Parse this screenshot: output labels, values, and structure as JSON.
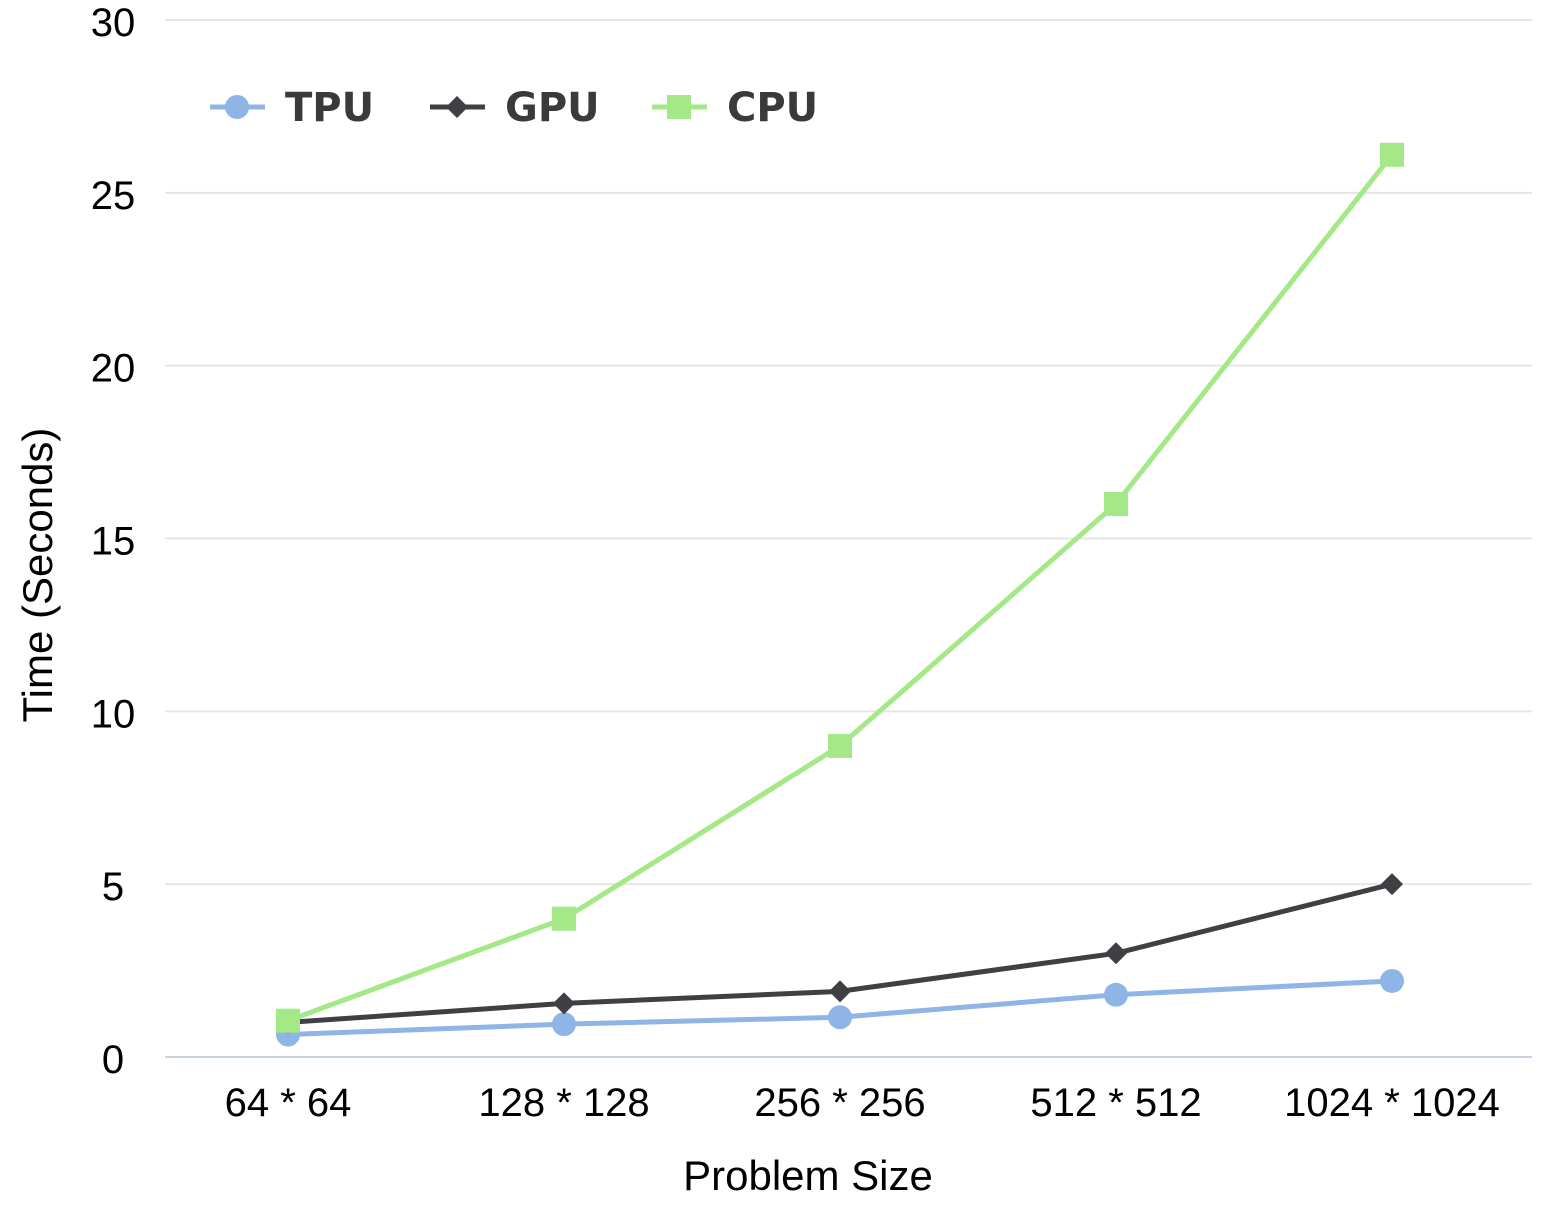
{
  "chart_data": {
    "type": "line",
    "title": "",
    "xlabel": "Problem Size",
    "ylabel": "Time (Seconds)",
    "categories": [
      "64 * 64",
      "128 * 128",
      "256 * 256",
      "512 * 512",
      "1024 * 1024"
    ],
    "ylim": [
      0,
      30
    ],
    "yticks": [
      0,
      5,
      10,
      15,
      20,
      25,
      30
    ],
    "grid": true,
    "legend_position": "top-left",
    "series": [
      {
        "name": "TPU",
        "values": [
          0.65,
          0.95,
          1.15,
          1.8,
          2.2
        ],
        "color": "#8fb4e6",
        "marker": "circle"
      },
      {
        "name": "GPU",
        "values": [
          1.0,
          1.55,
          1.9,
          3.0,
          5.0
        ],
        "color": "#3f3f44",
        "marker": "diamond"
      },
      {
        "name": "CPU",
        "values": [
          1.05,
          4.0,
          9.0,
          16.0,
          26.1
        ],
        "color": "#a4e887",
        "marker": "square"
      }
    ]
  }
}
